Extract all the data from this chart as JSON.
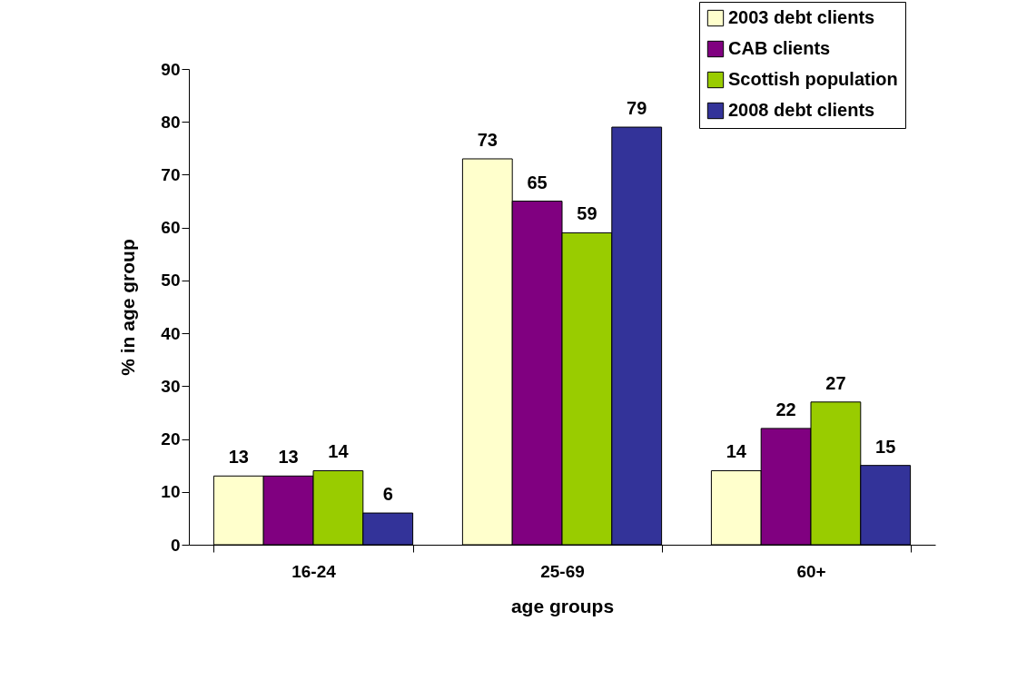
{
  "chart_data": {
    "type": "bar",
    "xlabel": "age groups",
    "ylabel": "% in age group",
    "categories": [
      "16-24",
      "25-69",
      "60+"
    ],
    "series": [
      {
        "name": "2003 debt clients",
        "color": "#ffffcc",
        "values": [
          13,
          73,
          14
        ]
      },
      {
        "name": "CAB clients",
        "color": "#800080",
        "values": [
          13,
          65,
          22
        ]
      },
      {
        "name": "Scottish population",
        "color": "#99cc00",
        "values": [
          14,
          59,
          27
        ]
      },
      {
        "name": "2008 debt clients",
        "color": "#333399",
        "values": [
          6,
          79,
          15
        ]
      }
    ],
    "ylim": [
      0,
      90
    ],
    "yticks": [
      0,
      10,
      20,
      30,
      40,
      50,
      60,
      70,
      80,
      90
    ],
    "data_labels": true,
    "grid": false,
    "legend": "top right"
  }
}
